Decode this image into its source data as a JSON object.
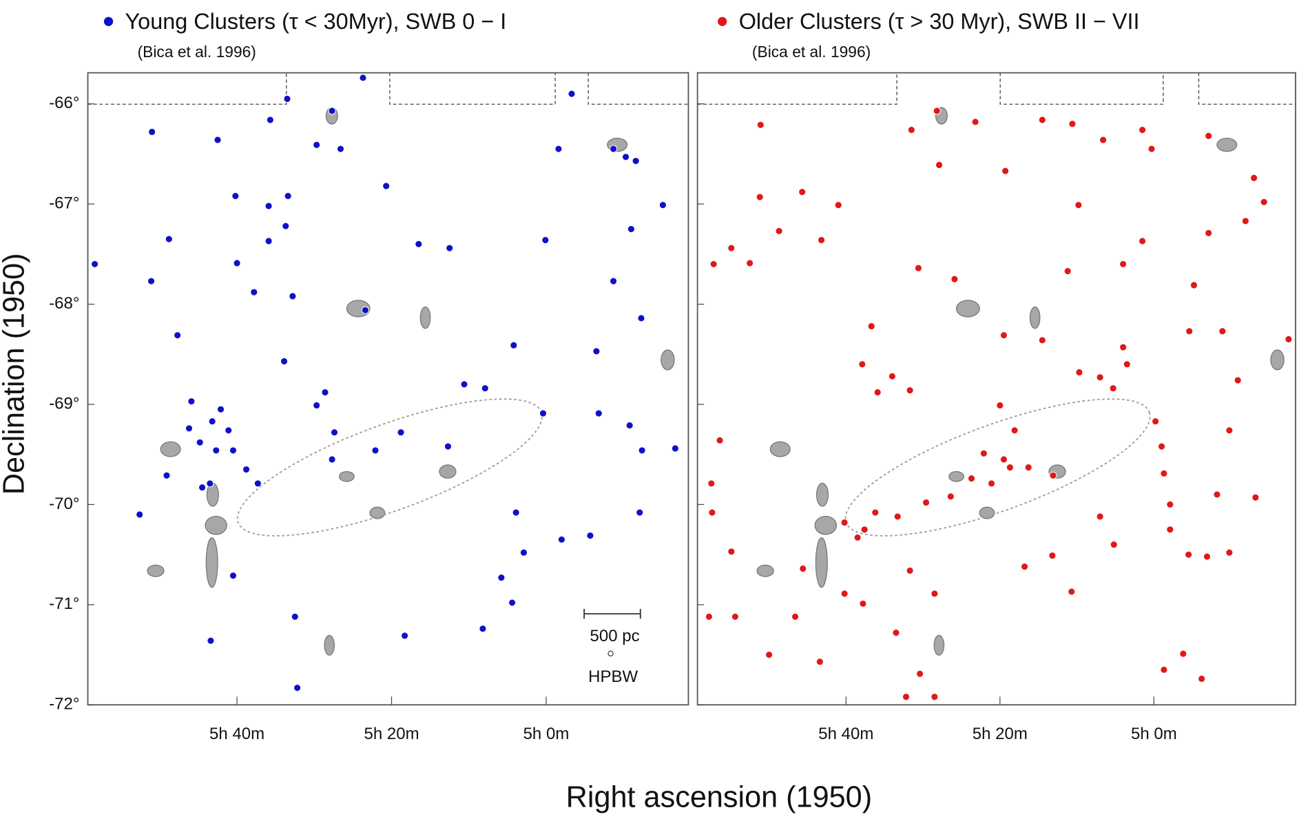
{
  "chart_data": [
    {
      "type": "scatter",
      "xlabel": "Right ascension (1950)",
      "ylabel": "Declination (1950)",
      "note": "(Bica et al. 1996)",
      "annotations": [
        "500 pc",
        "HPBW"
      ],
      "xlim": [
        59.3,
        -18.4
      ],
      "ylim": [
        -72,
        -65.69
      ],
      "xticks": [
        {
          "value": 40,
          "label": "5h 40m"
        },
        {
          "value": 20,
          "label": "5h 20m"
        },
        {
          "value": 0,
          "label": "5h 0m"
        }
      ],
      "yticks": [
        {
          "value": -66,
          "label": "-66°"
        },
        {
          "value": -67,
          "label": "-67°"
        },
        {
          "value": -68,
          "label": "-68°"
        },
        {
          "value": -69,
          "label": "-69°"
        },
        {
          "value": -70,
          "label": "-70°"
        },
        {
          "value": -71,
          "label": "-71°"
        },
        {
          "value": -72,
          "label": "-72°"
        }
      ],
      "series": [
        {
          "name": "Young Clusters (τ < 30Myr), SWB 0 − I",
          "color": "#1010c8",
          "x": [
            58.4,
            51.0,
            51.1,
            47.7,
            48.8,
            45.9,
            42.1,
            46.2,
            43.2,
            41.1,
            44.8,
            42.7,
            40.5,
            43.5,
            38.8,
            37.3,
            42.5,
            35.7,
            33.5,
            29.7,
            27.7,
            26.6,
            40.2,
            35.9,
            33.4,
            33.7,
            35.9,
            40.0,
            37.8,
            32.8,
            33.9,
            28.6,
            29.7,
            27.4,
            27.7,
            23.4,
            23.7,
            20.7,
            16.5,
            12.5,
            18.8,
            22.1,
            10.6,
            7.9,
            12.7,
            4.2,
            0.4,
            3.9,
            2.9,
            5.8,
            4.4,
            8.2,
            -2.0,
            -5.7,
            -6.8,
            -6.5,
            -10.8,
            -12.4,
            -16.7,
            -12.1,
            -8.7,
            -12.3,
            -11.0,
            -15.1,
            -3.3,
            -1.6,
            0.1,
            -8.7,
            -10.3,
            -11.6,
            32.2,
            32.5,
            43.4,
            40.5,
            18.3,
            52.6,
            49.1,
            44.5
          ],
          "values": [
            -67.6,
            -66.28,
            -67.77,
            -68.31,
            -67.35,
            -68.97,
            -69.05,
            -69.24,
            -69.17,
            -69.26,
            -69.38,
            -69.46,
            -69.46,
            -69.79,
            -69.65,
            -69.79,
            -66.36,
            -66.16,
            -65.95,
            -66.41,
            -66.07,
            -66.45,
            -66.92,
            -67.02,
            -66.92,
            -67.22,
            -67.37,
            -67.59,
            -67.88,
            -67.92,
            -68.57,
            -68.88,
            -69.01,
            -69.28,
            -69.55,
            -68.06,
            -65.74,
            -66.82,
            -67.4,
            -67.44,
            -69.28,
            -69.46,
            -68.8,
            -68.84,
            -69.42,
            -68.41,
            -69.09,
            -70.08,
            -70.48,
            -70.73,
            -70.98,
            -71.24,
            -70.35,
            -70.31,
            -69.09,
            -68.47,
            -69.21,
            -69.46,
            -69.44,
            -70.08,
            -67.77,
            -68.14,
            -67.25,
            -67.01,
            -65.9,
            -66.45,
            -67.36,
            -66.45,
            -66.53,
            -66.57,
            -71.83,
            -71.12,
            -71.36,
            -70.71,
            -71.31,
            -70.1,
            -69.71,
            -69.83
          ]
        }
      ]
    },
    {
      "type": "scatter",
      "note": "(Bica et al. 1996)",
      "xlim": [
        59.3,
        -18.4
      ],
      "ylim": [
        -72,
        -65.69
      ],
      "xticks": [
        {
          "value": 40,
          "label": "5h 40m"
        },
        {
          "value": 20,
          "label": "5h 20m"
        },
        {
          "value": 0,
          "label": "5h 0m"
        }
      ],
      "series": [
        {
          "name": "Older Clusters (τ > 30 Myr), SWB II − VII",
          "color": "#e01818",
          "x": [
            57.2,
            51.1,
            51.2,
            52.5,
            54.9,
            48.7,
            45.7,
            43.2,
            41.0,
            31.5,
            28.2,
            27.9,
            23.2,
            19.3,
            14.5,
            10.6,
            6.6,
            1.5,
            0.3,
            -7.1,
            -13.0,
            -14.3,
            -11.9,
            -7.1,
            9.8,
            11.2,
            4.0,
            1.5,
            -5.2,
            30.6,
            25.9,
            36.7,
            37.9,
            34.0,
            31.7,
            19.5,
            14.5,
            9.7,
            4.0,
            3.5,
            5.3,
            7.0,
            20.0,
            18.1,
            22.1,
            19.5,
            16.3,
            13.1,
            23.7,
            21.1,
            26.4,
            29.6,
            33.3,
            37.6,
            40.2,
            38.5,
            36.2,
            31.7,
            28.5,
            33.5,
            30.4,
            37.8,
            40.2,
            46.6,
            54.4,
            57.8,
            50.0,
            43.4,
            45.6,
            54.9,
            57.4,
            57.5,
            56.4,
            35.9,
            16.8,
            13.2,
            10.7,
            7.0,
            5.2,
            -0.2,
            -1.0,
            -1.3,
            -2.1,
            -2.1,
            -4.5,
            -6.9,
            -9.8,
            -8.2,
            -9.8,
            -10.9,
            -13.2,
            -17.5,
            -8.9,
            -4.6,
            -1.3,
            -3.8,
            -6.2,
            32.2,
            28.5,
            18.7
          ],
          "values": [
            -67.6,
            -66.21,
            -66.93,
            -67.59,
            -67.44,
            -67.27,
            -66.88,
            -67.36,
            -67.01,
            -66.26,
            -66.07,
            -66.61,
            -66.18,
            -66.67,
            -66.16,
            -66.2,
            -66.36,
            -66.26,
            -66.45,
            -66.32,
            -66.74,
            -66.98,
            -67.17,
            -67.29,
            -67.01,
            -67.67,
            -67.6,
            -67.37,
            -67.81,
            -67.64,
            -67.75,
            -68.22,
            -68.6,
            -68.72,
            -68.86,
            -68.31,
            -68.36,
            -68.68,
            -68.43,
            -68.6,
            -68.84,
            -68.73,
            -69.01,
            -69.26,
            -69.49,
            -69.55,
            -69.63,
            -69.71,
            -69.74,
            -69.79,
            -69.92,
            -69.98,
            -70.12,
            -70.25,
            -70.18,
            -70.33,
            -70.08,
            -70.66,
            -70.89,
            -71.28,
            -71.69,
            -70.99,
            -70.89,
            -71.12,
            -71.12,
            -71.12,
            -71.5,
            -71.57,
            -70.64,
            -70.47,
            -70.08,
            -69.79,
            -69.36,
            -68.88,
            -70.62,
            -70.51,
            -70.87,
            -70.12,
            -70.4,
            -69.17,
            -69.42,
            -69.69,
            -70.0,
            -70.25,
            -70.5,
            -70.52,
            -70.48,
            -69.9,
            -69.26,
            -68.76,
            -69.93,
            -68.35,
            -68.27,
            -68.27,
            -71.65,
            -71.49,
            -71.74,
            -71.92,
            -71.92,
            -69.63
          ]
        }
      ]
    }
  ]
}
